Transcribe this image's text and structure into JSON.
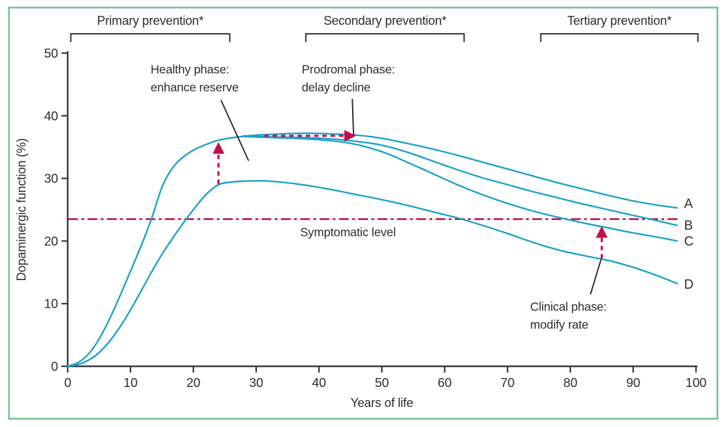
{
  "window": {
    "background": "#FFFFFF",
    "border_color": "#79C09A"
  },
  "chart_data": {
    "type": "line",
    "title": "",
    "xlabel": "Years of life",
    "ylabel": "Dopaminergic function (%)",
    "xlim": [
      0,
      100
    ],
    "ylim": [
      0,
      50
    ],
    "xticks": [
      0,
      10,
      20,
      30,
      40,
      50,
      60,
      70,
      80,
      90,
      100
    ],
    "yticks": [
      0,
      10,
      20,
      30,
      40,
      50
    ],
    "grid": false,
    "legend_position": "none",
    "line_color": "#18A1C9",
    "accent_color": "#C30D45",
    "axis_color": "#3A3A3A",
    "text_color": "#2D2D2D",
    "phase_brackets": [
      {
        "id": "primary",
        "label": "Primary prevention*",
        "x_start": 0.5,
        "x_end": 25.8
      },
      {
        "id": "secondary",
        "label": "Secondary prevention*",
        "x_start": 37.9,
        "x_end": 63.1
      },
      {
        "id": "tertiary",
        "label": "Tertiary prevention*",
        "x_start": 75.3,
        "x_end": 100.3
      }
    ],
    "series": [
      {
        "name": "A",
        "points": [
          [
            0,
            0
          ],
          [
            2,
            0.8
          ],
          [
            4,
            2.8
          ],
          [
            6,
            6.2
          ],
          [
            8,
            10.5
          ],
          [
            10,
            15.2
          ],
          [
            12,
            20
          ],
          [
            13.5,
            24
          ],
          [
            15,
            28.6
          ],
          [
            16.5,
            31.4
          ],
          [
            18,
            33.1
          ],
          [
            20,
            34.5
          ],
          [
            22,
            35.4
          ],
          [
            24,
            36.1
          ],
          [
            27,
            36.6
          ],
          [
            30,
            36.9
          ],
          [
            34,
            37.1
          ],
          [
            38,
            37.2
          ],
          [
            42,
            37.1
          ],
          [
            46,
            36.9
          ],
          [
            50,
            36.4
          ],
          [
            54,
            35.6
          ],
          [
            58,
            34.7
          ],
          [
            62,
            33.7
          ],
          [
            66,
            32.6
          ],
          [
            70,
            31.5
          ],
          [
            74,
            30.4
          ],
          [
            78,
            29.3
          ],
          [
            82,
            28.3
          ],
          [
            86,
            27.3
          ],
          [
            90,
            26.4
          ],
          [
            94,
            25.7
          ],
          [
            97,
            25.3
          ]
        ]
      },
      {
        "name": "B",
        "points": [
          [
            28,
            36.8
          ],
          [
            33,
            36.6
          ],
          [
            38,
            36.5
          ],
          [
            42,
            36.3
          ],
          [
            46,
            35.9
          ],
          [
            50,
            35.3
          ],
          [
            54,
            34.2
          ],
          [
            58,
            32.8
          ],
          [
            62,
            31.4
          ],
          [
            66,
            30.1
          ],
          [
            70,
            29
          ],
          [
            74,
            27.9
          ],
          [
            78,
            26.9
          ],
          [
            82,
            25.9
          ],
          [
            86,
            25
          ],
          [
            90,
            24.1
          ],
          [
            94,
            23.2
          ],
          [
            97,
            22.5
          ]
        ]
      },
      {
        "name": "C",
        "points": [
          [
            28,
            36.7
          ],
          [
            33,
            36.5
          ],
          [
            38,
            36.3
          ],
          [
            42,
            36
          ],
          [
            45,
            35.6
          ],
          [
            48,
            34.9
          ],
          [
            51,
            33.9
          ],
          [
            54,
            32.6
          ],
          [
            58,
            30.8
          ],
          [
            62,
            29
          ],
          [
            66,
            27.4
          ],
          [
            70,
            26
          ],
          [
            74,
            24.8
          ],
          [
            78,
            23.8
          ],
          [
            82,
            22.9
          ],
          [
            86,
            22.1
          ],
          [
            90,
            21.3
          ],
          [
            94,
            20.6
          ],
          [
            97,
            20
          ]
        ]
      },
      {
        "name": "D",
        "points": [
          [
            0,
            0
          ],
          [
            2,
            0.4
          ],
          [
            4,
            1.4
          ],
          [
            6,
            3.2
          ],
          [
            8,
            5.8
          ],
          [
            10,
            9
          ],
          [
            12,
            12.6
          ],
          [
            14,
            16.2
          ],
          [
            16,
            19.4
          ],
          [
            18,
            22.3
          ],
          [
            20,
            25
          ],
          [
            22,
            27.4
          ],
          [
            24,
            29
          ],
          [
            26,
            29.4
          ],
          [
            28,
            29.55
          ],
          [
            31,
            29.6
          ],
          [
            34,
            29.4
          ],
          [
            38,
            28.9
          ],
          [
            42,
            28.2
          ],
          [
            46,
            27.4
          ],
          [
            50,
            26.6
          ],
          [
            54,
            25.7
          ],
          [
            58,
            24.7
          ],
          [
            62,
            23.7
          ],
          [
            66,
            22.5
          ],
          [
            70,
            21.2
          ],
          [
            74,
            19.8
          ],
          [
            78,
            18.6
          ],
          [
            82,
            17.7
          ],
          [
            86,
            16.9
          ],
          [
            90,
            15.8
          ],
          [
            94,
            14.4
          ],
          [
            97,
            13.2
          ]
        ]
      }
    ],
    "series_end_labels": [
      {
        "series": "A",
        "label": "A",
        "x": 98.1,
        "y": 26.0
      },
      {
        "series": "B",
        "label": "B",
        "x": 98.1,
        "y": 22.5
      },
      {
        "series": "C",
        "label": "C",
        "x": 98.1,
        "y": 20.0
      },
      {
        "series": "D",
        "label": "D",
        "x": 98.1,
        "y": 13.1
      }
    ],
    "reference_line": {
      "label": "Symptomatic level",
      "y": 23.5,
      "x_start": 0.1,
      "x_end": 97.2,
      "label_x": 44.6,
      "label_y": 21.4
    },
    "arrows": [
      {
        "id": "enhance-reserve-arrow",
        "x1": 24,
        "y1": 29.1,
        "x2": 24,
        "y2": 35.8
      },
      {
        "id": "delay-decline-arrow",
        "x1": 31.3,
        "y1": 36.8,
        "x2": 45.9,
        "y2": 36.8
      },
      {
        "id": "modify-rate-arrow",
        "x1": 85,
        "y1": 17.2,
        "x2": 85,
        "y2": 22.4
      }
    ],
    "annotations": [
      {
        "id": "healthy-phase",
        "lines": [
          "Healthy phase:",
          "enhance reserve"
        ],
        "x": 13.2,
        "y": 47.4,
        "pointer": {
          "x1": 24.4,
          "y1": 42.5,
          "x2": 28.8,
          "y2": 32.8
        }
      },
      {
        "id": "prodromal-phase",
        "lines": [
          "Prodromal phase:",
          "delay decline"
        ],
        "x": 37.25,
        "y": 47.4,
        "pointer": {
          "x1": 45.3,
          "y1": 42.7,
          "x2": 45.5,
          "y2": 37.0
        }
      },
      {
        "id": "clinical-phase",
        "lines": [
          "Clinical phase:",
          "modify rate"
        ],
        "x": 73.6,
        "y": 9.5,
        "pointer": {
          "x1": 83.2,
          "y1": 11.5,
          "x2": 84.9,
          "y2": 17.1
        }
      }
    ]
  }
}
